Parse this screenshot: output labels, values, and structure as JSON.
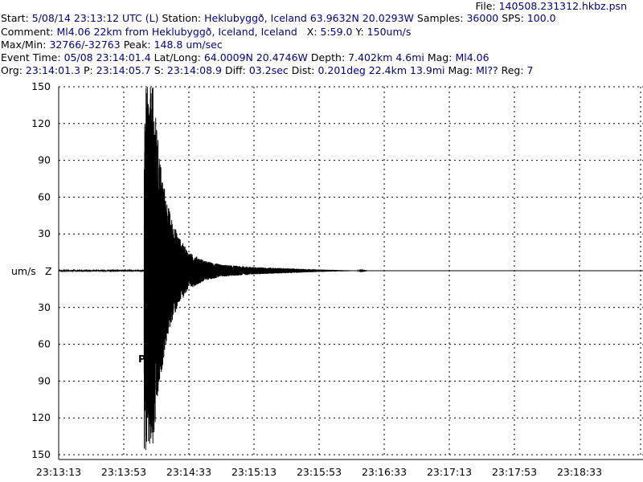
{
  "header": {
    "file_label": "File:",
    "file_value": "140508.231312.hkbz.psn",
    "line1": [
      {
        "k": "Start:",
        "v": "5/08/14 23:13:12 UTC (L)"
      },
      {
        "k": "Station:",
        "v": "Heklubyggð, Iceland 63.9632N 20.0293W"
      },
      {
        "k": "Samples:",
        "v": "36000"
      },
      {
        "k": "SPS:",
        "v": "100.0"
      }
    ],
    "line2": [
      {
        "k": "Comment:",
        "v": "Ml4.06 22km from Heklubyggð, Iceland, Iceland"
      },
      {
        "k": "X:",
        "v": "5:59.0"
      },
      {
        "k": "Y:",
        "v": "150um/s"
      }
    ],
    "line3": [
      {
        "k": "Max/Min:",
        "v": "32766/-32763"
      },
      {
        "k": "Peak:",
        "v": "148.8 um/sec"
      }
    ],
    "line4": [
      {
        "k": "Event Time:",
        "v": "05/08 23:14:01.4"
      },
      {
        "k": "Lat/Long:",
        "v": "64.0009N 20.4746W"
      },
      {
        "k": "Depth:",
        "v": "7.402km 4.6mi"
      },
      {
        "k": "Mag:",
        "v": "Ml4.06"
      }
    ],
    "line5": [
      {
        "k": "Org:",
        "v": "23:14:01.3"
      },
      {
        "k": "P:",
        "v": "23:14:05.7"
      },
      {
        "k": "S:",
        "v": "23:14:08.9"
      },
      {
        "k": "Diff:",
        "v": "03.2sec"
      },
      {
        "k": "Dist:",
        "v": "0.201deg 22.4km 13.9mi"
      },
      {
        "k": "Mag:",
        "v": "Ml??"
      },
      {
        "k": "Reg:",
        "v": "7"
      }
    ]
  },
  "chart_data": {
    "type": "line",
    "title": "",
    "ylabel": "um/s",
    "channel": "Z",
    "phase_marker": "P",
    "ylim": [
      -150,
      150
    ],
    "y_ticks": [
      150,
      120,
      90,
      60,
      30,
      -30,
      -60,
      -90,
      -120,
      -150
    ],
    "y_tick_labels": [
      "150",
      "120",
      "90",
      "60",
      "30",
      "30",
      "60",
      "90",
      "120",
      "150"
    ],
    "x_unit": "seconds after 23:13:13",
    "xlim": [
      0,
      359
    ],
    "x_ticks": [
      0,
      40,
      80,
      120,
      160,
      200,
      240,
      280,
      320
    ],
    "x_tick_labels": [
      "23:13:13",
      "23:13:53",
      "23:14:33",
      "23:15:13",
      "23:15:53",
      "23:16:33",
      "23:17:13",
      "23:17:53",
      "23:18:33"
    ],
    "grid": true,
    "grid_style": "dotted",
    "series": [
      {
        "color": "#000000",
        "onset": 52.5,
        "peak": 150,
        "envelope_x": [
          52.5,
          53.5,
          56,
          58,
          60,
          63,
          66,
          70,
          75,
          80,
          90,
          100,
          120,
          140,
          160,
          175,
          190
        ],
        "envelope_y": [
          150,
          150,
          150,
          150,
          120,
          85,
          60,
          40,
          25,
          15,
          8,
          5,
          3,
          2,
          1,
          0.5,
          0
        ]
      }
    ]
  },
  "colors": {
    "label_text": "#000000",
    "value_text": "#000080",
    "trace": "#000000",
    "grid": "#000000",
    "background": "#ffffff"
  }
}
